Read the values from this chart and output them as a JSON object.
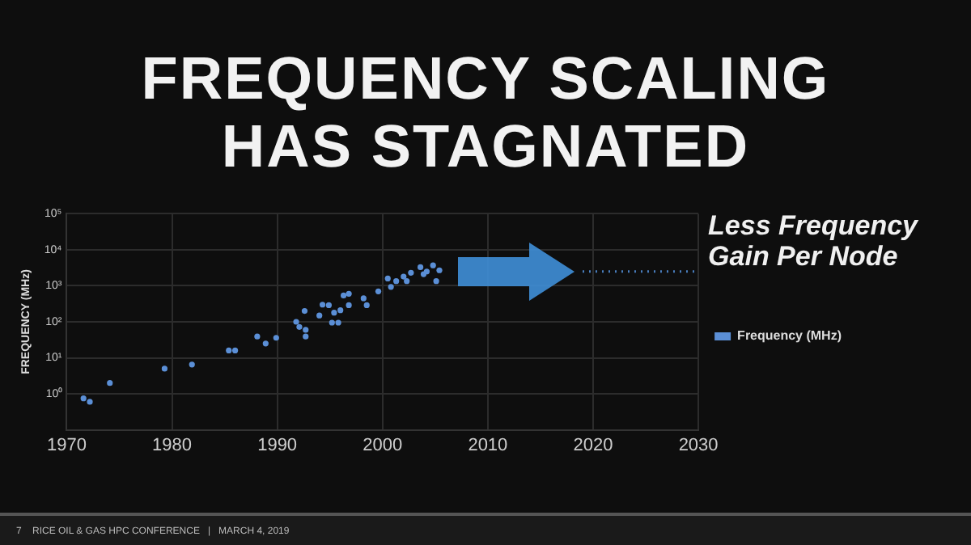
{
  "chart_data": {
    "type": "scatter",
    "title": "FREQUENCY SCALING HAS STAGNATED",
    "ylabel": "FREQUENCY (MHz)",
    "log": "y",
    "grid": true,
    "legend": "right",
    "marker": "circle",
    "xlim": [
      1970,
      2030
    ],
    "xticks": [
      1970,
      1980,
      1990,
      2000,
      2010,
      2020,
      2030
    ],
    "ylim": [
      0.1,
      100000
    ],
    "yticks": [
      {
        "value": 1,
        "label": "10⁰"
      },
      {
        "value": 10,
        "label": "10¹"
      },
      {
        "value": 100,
        "label": "10²"
      },
      {
        "value": 1000,
        "label": "10³"
      },
      {
        "value": 10000,
        "label": "10⁴"
      },
      {
        "value": 100000,
        "label": "10⁵"
      }
    ],
    "series": [
      {
        "name": "Frequency (MHz)",
        "color": "#5b8fd6",
        "x": [
          1971.6,
          1972.2,
          1974.1,
          1979.3,
          1981.9,
          1985.4,
          1986,
          1988.1,
          1988.9,
          1989.9,
          1991.8,
          1992.1,
          1992.6,
          1992.7,
          1992.7,
          1994,
          1994.3,
          1994.9,
          1995.2,
          1995.8,
          1995.4,
          1996,
          1996.3,
          1996.8,
          1996.8,
          1998.2,
          1998.5,
          1999.6,
          2000.5,
          2000.8,
          2001.3,
          2002,
          2002.3,
          2002.7,
          2003.6,
          2003.9,
          2004.2,
          2004.8,
          2005.1,
          2005.4
        ],
        "values": [
          0.75,
          0.6,
          2,
          5,
          6.5,
          16,
          16,
          39,
          25,
          36,
          100,
          72,
          200,
          60,
          39,
          150,
          300,
          290,
          95,
          95,
          180,
          210,
          540,
          600,
          290,
          450,
          290,
          700,
          1600,
          930,
          1350,
          1800,
          1350,
          2300,
          3300,
          2100,
          2500,
          3700,
          1350,
          2700
        ]
      },
      {
        "type": "line",
        "color": "#4a7fc0",
        "line_style": "dotted",
        "marker": "none",
        "x": [
          2019,
          2030
        ],
        "values": [
          2500,
          2500
        ]
      }
    ],
    "annotations": [
      {
        "text": "Less Frequency Gain Per Node",
        "x": 2030,
        "y": 2500
      },
      "7    RICE OIL & GAS HPC CONFERENCE   |   MARCH 4, 2019"
    ]
  }
}
